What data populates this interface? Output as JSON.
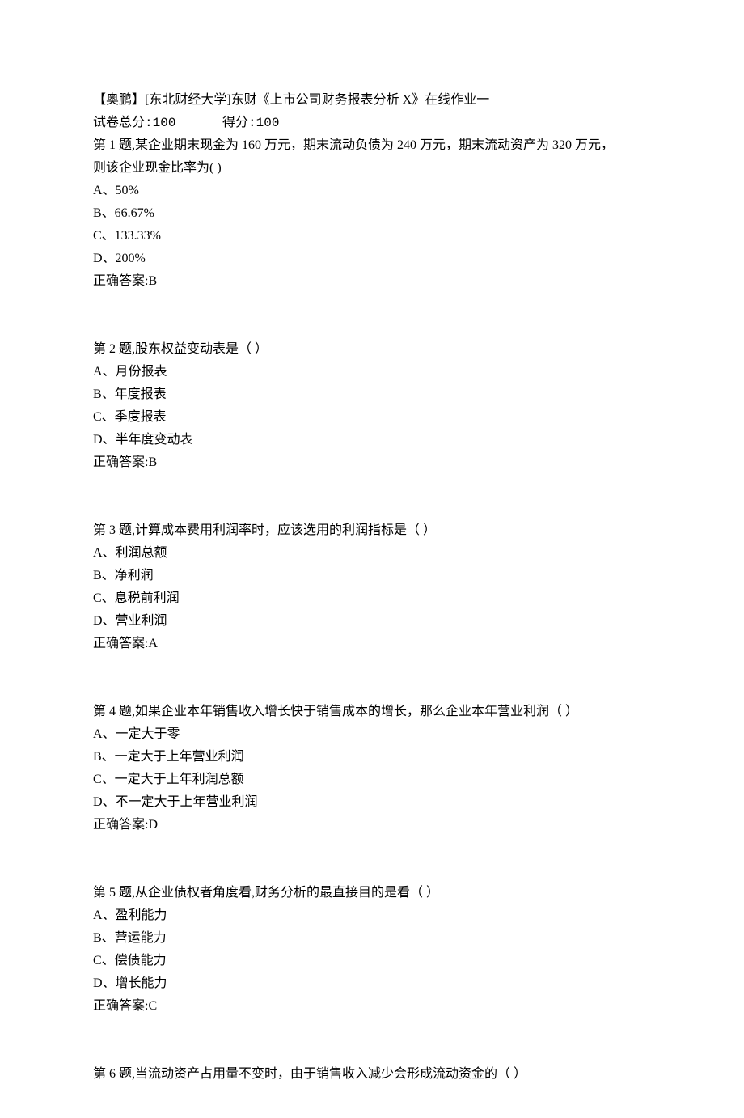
{
  "header": {
    "title": "【奥鹏】[东北财经大学]东财《上市公司财务报表分析 X》在线作业一"
  },
  "scoreLine": {
    "totalLabel": "试卷总分:",
    "totalValue": "100",
    "spacer": "      ",
    "gotLabel": "得分:",
    "gotValue": "100"
  },
  "questions": [
    {
      "stemLine1": "第 1 题,某企业期末现金为 160 万元，期末流动负债为 240 万元，期末流动资产为 320 万元，",
      "stemLine2": "则该企业现金比率为(       )",
      "options": [
        "A、50%",
        "B、66.67%",
        "C、133.33%",
        "D、200%"
      ],
      "answer": "正确答案:B"
    },
    {
      "stemLine1": "第 2 题,股东权益变动表是（   ）",
      "stemLine2": null,
      "options": [
        "A、月份报表",
        "B、年度报表",
        "C、季度报表",
        "D、半年度变动表"
      ],
      "answer": "正确答案:B"
    },
    {
      "stemLine1": "第 3 题,计算成本费用利润率时，应该选用的利润指标是（  ）",
      "stemLine2": null,
      "options": [
        "A、利润总额",
        "B、净利润",
        "C、息税前利润",
        "D、营业利润"
      ],
      "answer": "正确答案:A"
    },
    {
      "stemLine1": "第 4 题,如果企业本年销售收入增长快于销售成本的增长，那么企业本年营业利润（   ）",
      "stemLine2": null,
      "options": [
        "A、一定大于零",
        "B、一定大于上年营业利润",
        "C、一定大于上年利润总额",
        "D、不一定大于上年营业利润"
      ],
      "answer": "正确答案:D"
    },
    {
      "stemLine1": "第 5 题,从企业债权者角度看,财务分析的最直接目的是看（   ）",
      "stemLine2": null,
      "options": [
        "A、盈利能力",
        "B、营运能力",
        "C、偿债能力",
        "D、增长能力"
      ],
      "answer": "正确答案:C"
    },
    {
      "stemLine1": "第 6 题,当流动资产占用量不变时，由于销售收入减少会形成流动资金的（     ）",
      "stemLine2": null,
      "options": [],
      "answer": null
    }
  ]
}
